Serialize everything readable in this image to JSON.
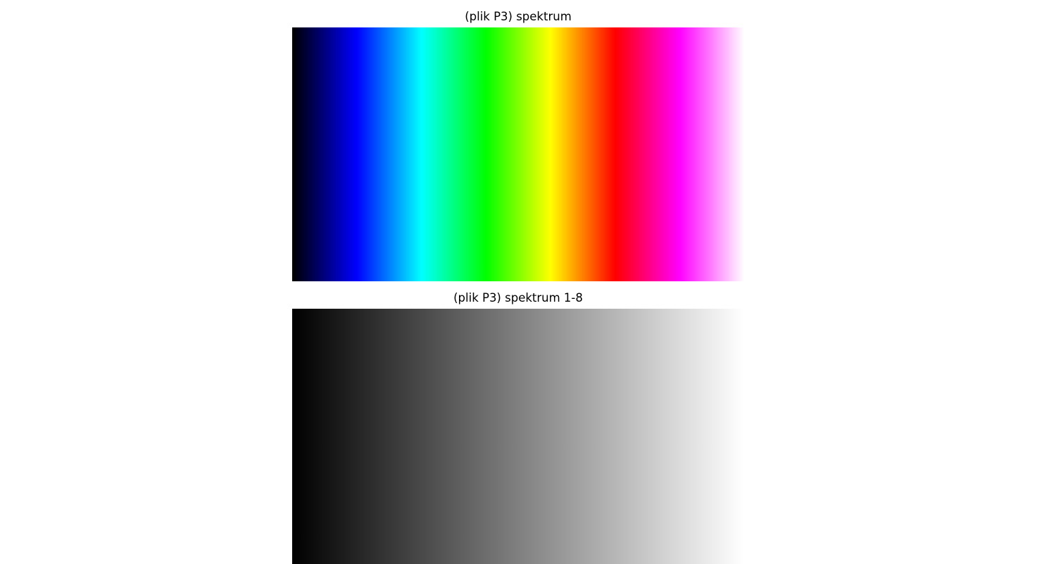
{
  "panels": [
    {
      "title": "(plik P3) spektrum",
      "gradient_stops": [
        "#000000",
        "#0000ff",
        "#00ffff",
        "#00ff00",
        "#ffff00",
        "#ff0000",
        "#ff00ff",
        "#ffffff"
      ]
    },
    {
      "title": "(plik P3) spektrum 1-8",
      "gradient_stops": [
        "#000000",
        "#ffffff"
      ]
    }
  ]
}
